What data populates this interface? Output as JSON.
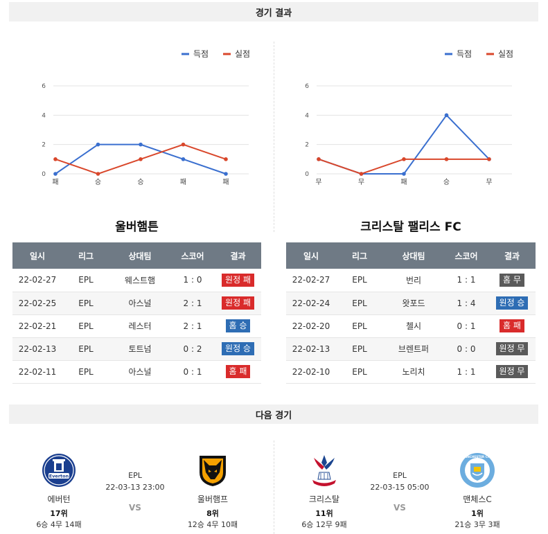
{
  "sections": {
    "results_title": "경기 결과",
    "next_title": "다음 경기"
  },
  "legend": {
    "scored": "득점",
    "conceded": "실점",
    "scored_color": "#3a6fcf",
    "conceded_color": "#d9472b"
  },
  "chart_data": [
    {
      "type": "line",
      "categories": [
        "패",
        "승",
        "승",
        "패",
        "패"
      ],
      "series": [
        {
          "name": "득점",
          "values": [
            0,
            2,
            2,
            1,
            0
          ]
        },
        {
          "name": "실점",
          "values": [
            1,
            0,
            1,
            2,
            1
          ]
        }
      ],
      "yticks": [
        "0",
        "2",
        "4",
        "6"
      ],
      "ylim": [
        0,
        6
      ],
      "grid": true,
      "legend_position": "top-right"
    },
    {
      "type": "line",
      "categories": [
        "무",
        "무",
        "패",
        "승",
        "무"
      ],
      "series": [
        {
          "name": "득점",
          "values": [
            1,
            0,
            0,
            4,
            1
          ]
        },
        {
          "name": "실점",
          "values": [
            1,
            0,
            1,
            1,
            1
          ]
        }
      ],
      "yticks": [
        "0",
        "2",
        "4",
        "6"
      ],
      "ylim": [
        0,
        6
      ],
      "grid": true,
      "legend_position": "top-right"
    }
  ],
  "teams": {
    "left": {
      "name": "울버햄튼",
      "headers": [
        "일시",
        "리그",
        "상대팀",
        "스코어",
        "결과"
      ],
      "rows": [
        {
          "date": "22-02-27",
          "league": "EPL",
          "opponent": "웨스트햄",
          "score": "1 : 0",
          "result": "원정 패",
          "kind": "lose"
        },
        {
          "date": "22-02-25",
          "league": "EPL",
          "opponent": "아스널",
          "score": "2 : 1",
          "result": "원정 패",
          "kind": "lose"
        },
        {
          "date": "22-02-21",
          "league": "EPL",
          "opponent": "레스터",
          "score": "2 : 1",
          "result": "홈 승",
          "kind": "win"
        },
        {
          "date": "22-02-13",
          "league": "EPL",
          "opponent": "토트넘",
          "score": "0 : 2",
          "result": "원정 승",
          "kind": "win"
        },
        {
          "date": "22-02-11",
          "league": "EPL",
          "opponent": "아스널",
          "score": "0 : 1",
          "result": "홈 패",
          "kind": "lose"
        }
      ]
    },
    "right": {
      "name": "크리스탈 팰리스 FC",
      "headers": [
        "일시",
        "리그",
        "상대팀",
        "스코어",
        "결과"
      ],
      "rows": [
        {
          "date": "22-02-27",
          "league": "EPL",
          "opponent": "번리",
          "score": "1 : 1",
          "result": "홈 무",
          "kind": "draw"
        },
        {
          "date": "22-02-24",
          "league": "EPL",
          "opponent": "왓포드",
          "score": "1 : 4",
          "result": "원정 승",
          "kind": "win"
        },
        {
          "date": "22-02-20",
          "league": "EPL",
          "opponent": "첼시",
          "score": "0 : 1",
          "result": "홈 패",
          "kind": "lose"
        },
        {
          "date": "22-02-13",
          "league": "EPL",
          "opponent": "브렌트퍼",
          "score": "0 : 0",
          "result": "원정 무",
          "kind": "draw"
        },
        {
          "date": "22-02-10",
          "league": "EPL",
          "opponent": "노리치",
          "score": "1 : 1",
          "result": "원정 무",
          "kind": "draw"
        }
      ]
    }
  },
  "next": {
    "left": {
      "league": "EPL",
      "datetime": "22-03-13 23:00",
      "vs": "VS",
      "home": {
        "name": "에버턴",
        "rank": "17위",
        "record": "6승 4무 14패",
        "crest_text": "Everton"
      },
      "away": {
        "name": "울버햄프",
        "rank": "8위",
        "record": "12승 4무 10패"
      }
    },
    "right": {
      "league": "EPL",
      "datetime": "22-03-15 05:00",
      "vs": "VS",
      "home": {
        "name": "크리스탈",
        "rank": "11위",
        "record": "6승 12무 9패"
      },
      "away": {
        "name": "맨체스C",
        "rank": "1위",
        "record": "21승 3무 3패",
        "crest_text": "MANCHESTER CITY"
      }
    }
  }
}
